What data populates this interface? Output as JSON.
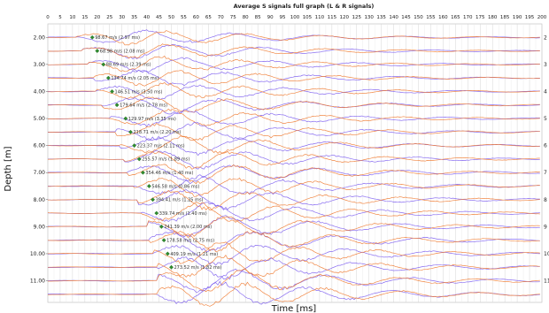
{
  "chart_data": {
    "type": "line",
    "title": "Average S signals full graph (L & R signals)",
    "xlabel": "Time [ms]",
    "ylabel": "Depth [m]",
    "xlim": [
      0,
      200
    ],
    "x_ticks": [
      0,
      5,
      10,
      15,
      20,
      25,
      30,
      35,
      40,
      45,
      50,
      55,
      60,
      65,
      70,
      75,
      80,
      85,
      90,
      95,
      100,
      105,
      110,
      115,
      120,
      125,
      130,
      135,
      140,
      145,
      150,
      155,
      160,
      165,
      170,
      175,
      180,
      185,
      190,
      195,
      200
    ],
    "ylim": [
      1.5,
      11.8
    ],
    "y_ticks": [
      "2.00",
      "3.00",
      "4.00",
      "5.00",
      "6.00",
      "7.00",
      "8.00",
      "9.00",
      "10.00",
      "11.00"
    ],
    "right_ticks": [
      "2",
      "3",
      "4",
      "5",
      "6",
      "7",
      "8",
      "9",
      "10",
      "11"
    ],
    "grid": true,
    "legend": "none",
    "series": [
      {
        "color": "#7b5cf0"
      },
      {
        "color": "#f07a30"
      }
    ],
    "picks": [
      {
        "depth": 2.0,
        "time": 18.0,
        "label": "98.67 m/s (2.97 ms)"
      },
      {
        "depth": 2.5,
        "time": 20.0,
        "label": "68.98 m/s (2.08 ms)"
      },
      {
        "depth": 3.0,
        "time": 22.5,
        "label": "88.69 m/s (2.39 ms)"
      },
      {
        "depth": 3.5,
        "time": 24.5,
        "label": "134.74 m/s (2.05 ms)"
      },
      {
        "depth": 4.0,
        "time": 26.0,
        "label": "146.51 m/s (3.50 ms)"
      },
      {
        "depth": 4.5,
        "time": 28.0,
        "label": "179.64 m/s (2.78 ms)"
      },
      {
        "depth": 5.0,
        "time": 31.5,
        "label": "129.97 m/s (3.35 ms)"
      },
      {
        "depth": 5.5,
        "time": 33.5,
        "label": "218.71 m/s (2.20 ms)"
      },
      {
        "depth": 6.0,
        "time": 35.0,
        "label": "223.37 m/s (2.11 ms)"
      },
      {
        "depth": 6.5,
        "time": 37.0,
        "label": "255.57 m/s (1.89 ms)"
      },
      {
        "depth": 7.0,
        "time": 38.5,
        "label": "354.46 m/s (1.40 ms)"
      },
      {
        "depth": 7.5,
        "time": 41.0,
        "label": "546.58 m/s (0.86 ms)"
      },
      {
        "depth": 8.0,
        "time": 42.5,
        "label": "394.41 m/s (1.25 ms)"
      },
      {
        "depth": 8.5,
        "time": 44.0,
        "label": "339.74 m/s (1.40 ms)"
      },
      {
        "depth": 9.0,
        "time": 46.0,
        "label": "241.39 m/s (2.00 ms)"
      },
      {
        "depth": 9.5,
        "time": 47.0,
        "label": "178.58 m/s (2.75 ms)"
      },
      {
        "depth": 10.0,
        "time": 48.5,
        "label": "409.19 m/s (1.21 ms)"
      },
      {
        "depth": 10.5,
        "time": 50.0,
        "label": "273.52 m/s (1.82 ms)"
      }
    ]
  }
}
